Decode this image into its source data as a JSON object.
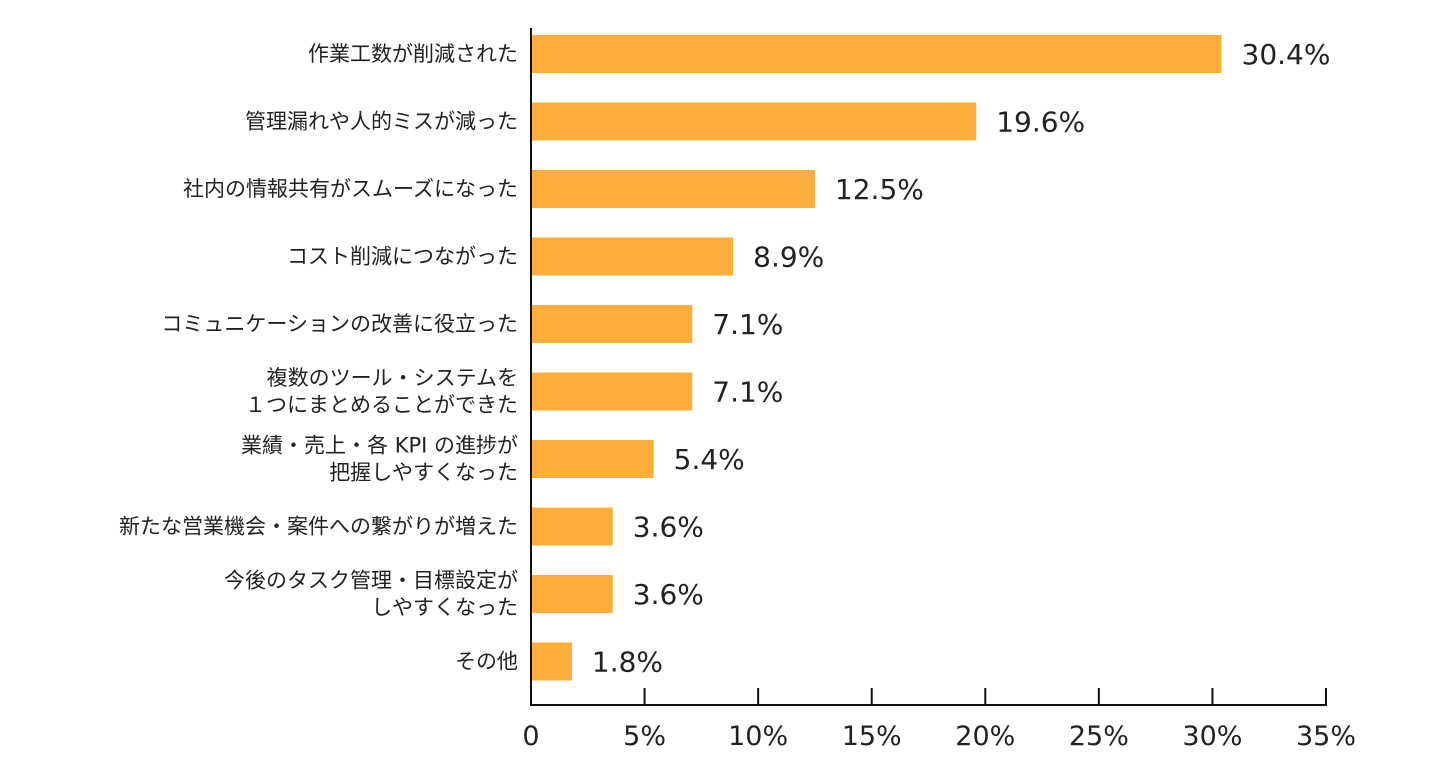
{
  "chart_data": {
    "type": "bar",
    "orientation": "horizontal",
    "categories": [
      [
        "作業工数が削減された"
      ],
      [
        "管理漏れや人的ミスが減った"
      ],
      [
        "社内の情報共有がスムーズになった"
      ],
      [
        "コスト削減につながった"
      ],
      [
        "コミュニケーションの改善に役立った"
      ],
      [
        "複数のツール・システムを",
        "１つにまとめることができた"
      ],
      [
        "業績・売上・各 KPI の進捗が",
        "把握しやすくなった"
      ],
      [
        "新たな営業機会・案件への繋がりが増えた"
      ],
      [
        "今後のタスク管理・目標設定が",
        "しやすくなった"
      ],
      [
        "その他"
      ]
    ],
    "values": [
      30.4,
      19.6,
      12.5,
      8.9,
      7.1,
      7.1,
      5.4,
      3.6,
      3.6,
      1.8
    ],
    "value_labels": [
      "30.4%",
      "19.6%",
      "12.5%",
      "8.9%",
      "7.1%",
      "7.1%",
      "5.4%",
      "3.6%",
      "3.6%",
      "1.8%"
    ],
    "xlim": [
      0,
      35
    ],
    "x_ticks": [
      0,
      5,
      10,
      15,
      20,
      25,
      30,
      35
    ],
    "x_tick_labels": [
      "0",
      "5%",
      "10%",
      "15%",
      "20%",
      "25%",
      "30%",
      "35%"
    ],
    "bar_color": "#FBAE3A",
    "axis_color": "#111111",
    "grid": false,
    "legend": "none"
  }
}
